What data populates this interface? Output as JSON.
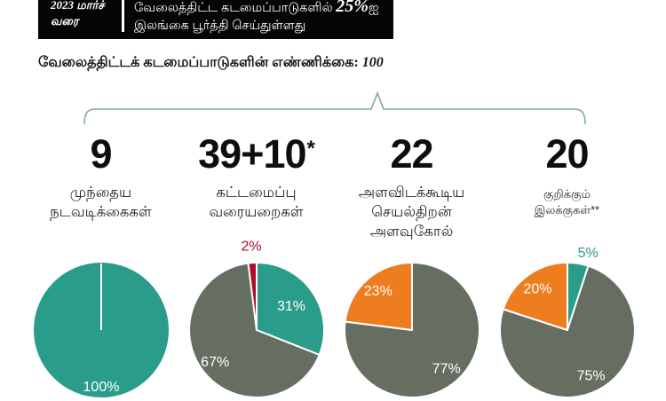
{
  "colors": {
    "teal": "#2a9d8a",
    "gray": "#666e62",
    "orange": "#ee7d1f",
    "red": "#ae0c2a",
    "brace": "#7fa9a2",
    "header_bg": "#050505",
    "header_text": "#ffffff"
  },
  "header": {
    "period": "2023 மார்ச்\nவரை",
    "claim_prefix": "வேலைத்திட்ட கடமைப்பாடுகளில் ",
    "claim_value": "25%",
    "claim_value_suffix": "ஐ",
    "claim_line2": "இலங்கை பூர்த்தி செய்துள்ளது"
  },
  "subtitle": {
    "label": "வேலைத்திட்டக் கடமைப்பாடுகளின் எண்ணிக்கை: ",
    "value": "100"
  },
  "chart_data": [
    {
      "type": "pie",
      "count": "9",
      "count_sup": "",
      "title": "முந்தைய\nநடவடிக்கைகள்",
      "slices": [
        {
          "value": 100,
          "label": "100%",
          "color": "#2a9d8a",
          "label_frac": 0.85
        }
      ]
    },
    {
      "type": "pie",
      "count": "39+10",
      "count_sup": "*",
      "title": "கட்டமைப்பு\nவரையறைகள்",
      "slices": [
        {
          "value": 31,
          "label": "31%",
          "color": "#2a9d8a",
          "label_frac": 0.62
        },
        {
          "value": 67,
          "label": "67%",
          "color": "#666e62",
          "label_frac": 0.78
        },
        {
          "value": 2,
          "label": "2%",
          "color": "#ae0c2a",
          "label_frac": 1.24,
          "label_outside": true
        }
      ]
    },
    {
      "type": "pie",
      "count": "22",
      "count_sup": "",
      "title": "அளவிடக்கூடிய\nசெயல்திறன்\nஅளவுகோல்",
      "slices": [
        {
          "value": 77,
          "label": "77%",
          "color": "#666e62",
          "label_frac": 0.77
        },
        {
          "value": 23,
          "label": "23%",
          "color": "#ee7d1f",
          "label_frac": 0.76
        }
      ]
    },
    {
      "type": "pie",
      "count": "20",
      "count_sup": "",
      "title": "குறிக்கும்\nஇலக்குகள்**",
      "small_title": true,
      "slices": [
        {
          "value": 5,
          "label": "5%",
          "color": "#2a9d8a",
          "label_frac": 1.18,
          "label_angle": 15,
          "label_outside": true
        },
        {
          "value": 75,
          "label": "75%",
          "color": "#666e62",
          "label_frac": 0.77
        },
        {
          "value": 20,
          "label": "20%",
          "color": "#ee7d1f",
          "label_frac": 0.75
        }
      ]
    }
  ]
}
